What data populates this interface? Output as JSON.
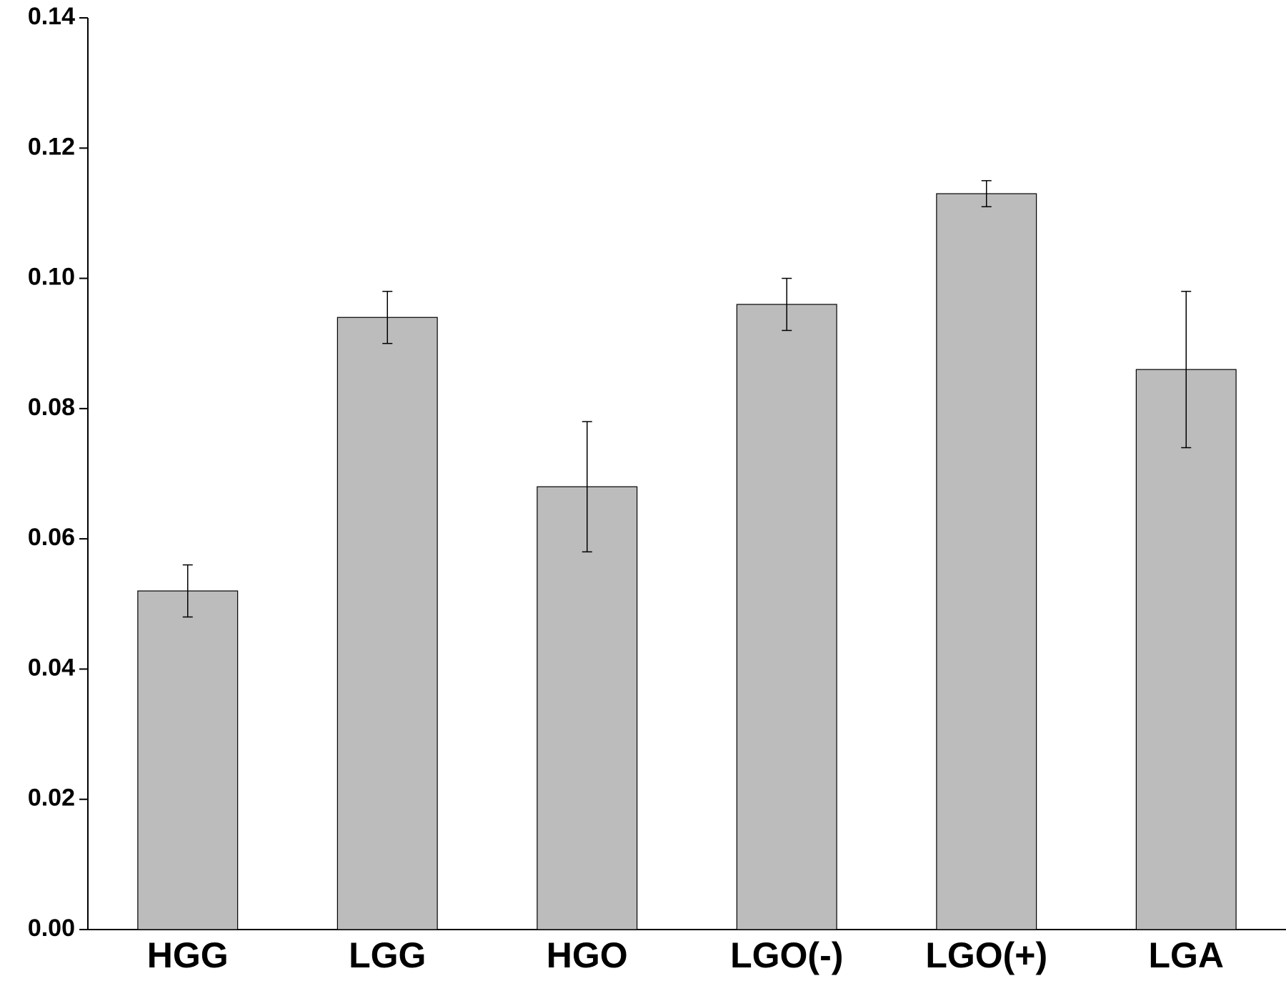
{
  "chart_data": {
    "type": "bar",
    "categories": [
      "HGG",
      "LGG",
      "HGO",
      "LGO(-)",
      "LGO(+)",
      "LGA"
    ],
    "values": [
      0.052,
      0.094,
      0.068,
      0.096,
      0.113,
      0.086
    ],
    "errors": [
      0.004,
      0.004,
      0.01,
      0.004,
      0.002,
      0.012
    ],
    "color": "#bcbcbc",
    "ylim": [
      0,
      0.14
    ],
    "yticks": [
      {
        "value": 0,
        "label": "0.00"
      },
      {
        "value": 0.02,
        "label": "0.02"
      },
      {
        "value": 0.04,
        "label": "0.04"
      },
      {
        "value": 0.06,
        "label": "0.06"
      },
      {
        "value": 0.08,
        "label": "0.08"
      },
      {
        "value": 0.1,
        "label": "0.10"
      },
      {
        "value": 0.12,
        "label": "0.12"
      },
      {
        "value": 0.14,
        "label": "0.14"
      }
    ],
    "grid": false
  }
}
